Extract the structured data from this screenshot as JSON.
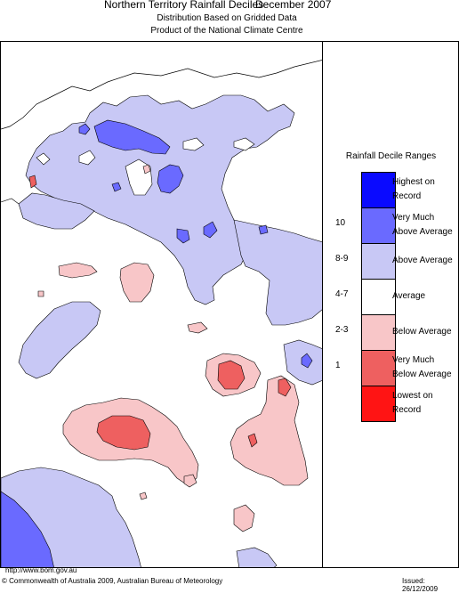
{
  "header": {
    "title": "Northern Territory Rainfall Deciles",
    "date": "December 2007",
    "subtitle1": "Distribution Based on Gridded Data",
    "subtitle2": "Product of the National Climate Centre"
  },
  "legend": {
    "title": "Rainfall Decile Ranges",
    "categories": [
      {
        "label": "Highest on Record",
        "line1": "Highest on",
        "line2": "Record",
        "color": "#0a0aff",
        "range": ""
      },
      {
        "label": "Very Much Above Average",
        "line1": "Very Much",
        "line2": "Above Average",
        "color": "#6a6aff",
        "range": "10"
      },
      {
        "label": "Above Average",
        "line1": "Above Average",
        "line2": "",
        "color": "#c8c8f5",
        "range": "8-9"
      },
      {
        "label": "Average",
        "line1": "Average",
        "line2": "",
        "color": "#ffffff",
        "range": "4-7"
      },
      {
        "label": "Below Average",
        "line1": "Below Average",
        "line2": "",
        "color": "#f8c6c8",
        "range": "2-3"
      },
      {
        "label": "Very Much Below Average",
        "line1": "Very Much",
        "line2": "Below Average",
        "color": "#ee6060",
        "range": "1"
      },
      {
        "label": "Lowest on Record",
        "line1": "Lowest on",
        "line2": "Record",
        "color": "#ff1414",
        "range": ""
      }
    ]
  },
  "footer": {
    "url": "http://www.bom.gov.au",
    "copyright": "© Commonwealth of Australia 2009, Australian Bureau of Meteorology",
    "issued": "Issued: 26/12/2009"
  },
  "colors": {
    "above": "#c8c8f5",
    "very_much_above": "#6a6aff",
    "highest": "#0a0aff",
    "below": "#f8c6c8",
    "very_much_below": "#ee6060",
    "land": "#ffffff",
    "sea": "#ffffff"
  }
}
